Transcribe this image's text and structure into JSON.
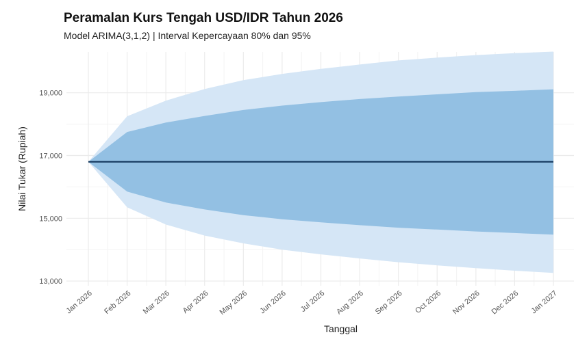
{
  "chart_data": {
    "type": "area",
    "title": "Peramalan Kurs Tengah USD/IDR Tahun 2026",
    "subtitle": "Model ARIMA(3,1,2) | Interval Kepercayaan 80% dan 95%",
    "xlabel": "Tanggal",
    "ylabel": "Nilai Tukar (Rupiah)",
    "x_ticks": [
      "Jan 2026",
      "Feb 2026",
      "Mar 2026",
      "Apr 2026",
      "May 2026",
      "Jun 2026",
      "Jul 2026",
      "Aug 2026",
      "Sep 2026",
      "Oct 2026",
      "Nov 2026",
      "Dec 2026",
      "Jan 2027"
    ],
    "y_ticks": [
      "13,000",
      "15,000",
      "17,000",
      "19,000"
    ],
    "y_tick_values": [
      13000,
      15000,
      17000,
      19000
    ],
    "ylim": [
      12850,
      20300
    ],
    "x": [
      "Jan 2026",
      "Feb 2026",
      "Mar 2026",
      "Apr 2026",
      "May 2026",
      "Jun 2026",
      "Jul 2026",
      "Aug 2026",
      "Sep 2026",
      "Oct 2026",
      "Nov 2026",
      "Dec 2026",
      "Jan 2027"
    ],
    "series": [
      {
        "values": [
          16800,
          16800,
          16800,
          16800,
          16800,
          16800,
          16800,
          16800,
          16800,
          16800,
          16800,
          16800,
          16800
        ]
      },
      {
        "lower": [
          16800,
          15850,
          15500,
          15280,
          15100,
          14970,
          14870,
          14780,
          14700,
          14640,
          14580,
          14530,
          14480
        ],
        "upper": [
          16800,
          17750,
          18050,
          18260,
          18450,
          18590,
          18700,
          18800,
          18880,
          18950,
          19020,
          19060,
          19110
        ]
      },
      {
        "lower": [
          16800,
          15350,
          14800,
          14450,
          14200,
          14000,
          13850,
          13720,
          13600,
          13500,
          13410,
          13330,
          13260
        ],
        "upper": [
          16800,
          18250,
          18750,
          19120,
          19400,
          19600,
          19760,
          19900,
          20030,
          20120,
          20200,
          20260,
          20310
        ]
      }
    ],
    "grid": true,
    "legend": "none",
    "colors": {
      "band95": "#d5e6f6",
      "band80": "#93c0e3",
      "forecast": "#13375d",
      "grid": "#ebebeb",
      "background": "#ffffff"
    }
  }
}
